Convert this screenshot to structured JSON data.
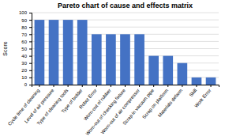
{
  "chart_data": {
    "type": "bar",
    "title": "Pareto chart of cause and effects matrix",
    "ylabel": "Score",
    "categories": [
      "Cycle time of cleaning",
      "Level of air pressure",
      "Type of cleaning tools",
      "Type of bolder",
      "Robot Error",
      "Worn-out of rubber",
      "Worn-out of checking fixture",
      "Worn-out of air compressor",
      "Scrap in vacuum pipe",
      "Scrap on platform",
      "Materials defarm",
      "Skill",
      "Work Error"
    ],
    "values": [
      90,
      90,
      90,
      90,
      70,
      70,
      70,
      70,
      40,
      40,
      30,
      10,
      10
    ],
    "color": "#4472C4",
    "ylim": [
      0,
      100
    ],
    "yticks": [
      0,
      10,
      20,
      30,
      40,
      50,
      60,
      70,
      80,
      90,
      100
    ],
    "grid": true
  }
}
